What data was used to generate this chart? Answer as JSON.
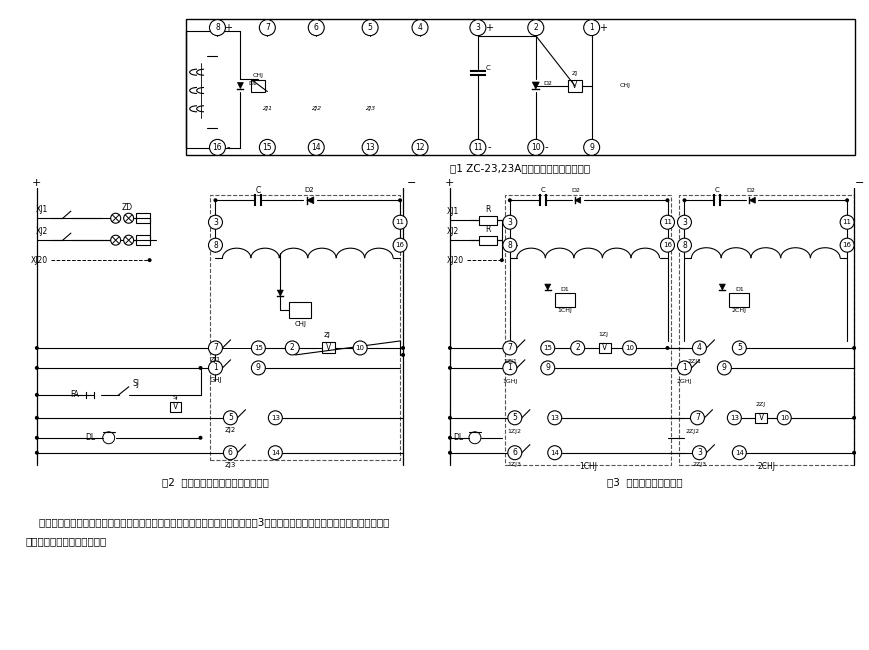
{
  "fig1_title": "图1 ZC-23,23A型冲击继电器内部接线图",
  "fig2_title": "图2  电压手动复归和延时复归接线图",
  "fig3_title": "图3  冲击自动复归接线图",
  "note_line1": "    注：如果需要冲击自动复归的回路中，可以利用两台冲击继电器反串接线（如图3）来实现，但信号回路中必须为线性电阻的情",
  "note_line2": "况下，可实现冲击自动复归。",
  "bg_color": "#ffffff"
}
